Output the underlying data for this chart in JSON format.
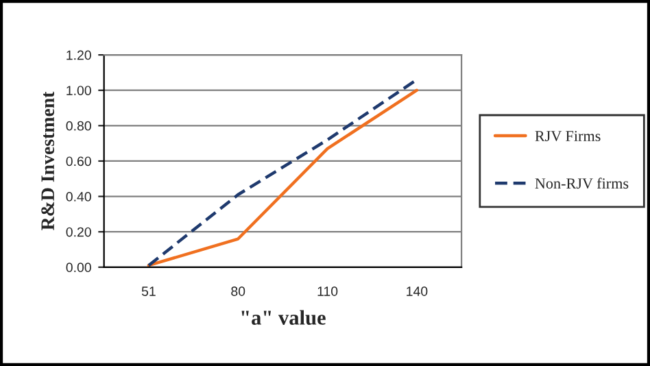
{
  "chart_data": {
    "type": "line",
    "xlabel": "\"a\" value",
    "ylabel": "R&D Investment",
    "categories": [
      "51",
      "80",
      "110",
      "140"
    ],
    "series": [
      {
        "name": "RJV Firms",
        "color": "#f07020",
        "line_style": "solid",
        "values": [
          0.01,
          0.16,
          0.67,
          1.0
        ]
      },
      {
        "name": "Non-RJV firms",
        "color": "#1f3a6e",
        "line_style": "dashed",
        "values": [
          0.01,
          0.41,
          0.72,
          1.06
        ]
      }
    ],
    "ylim": [
      0,
      1.2
    ],
    "yticks": [
      {
        "value": 0,
        "label": "0.00"
      },
      {
        "value": 0.2,
        "label": "0.20"
      },
      {
        "value": 0.4,
        "label": "0.40"
      },
      {
        "value": 0.6,
        "label": "0.60"
      },
      {
        "value": 0.8,
        "label": "0.80"
      },
      {
        "value": 1.0,
        "label": "1.00"
      },
      {
        "value": 1.2,
        "label": "1.20"
      }
    ],
    "grid": "y",
    "legend": "right",
    "marker": "none"
  }
}
